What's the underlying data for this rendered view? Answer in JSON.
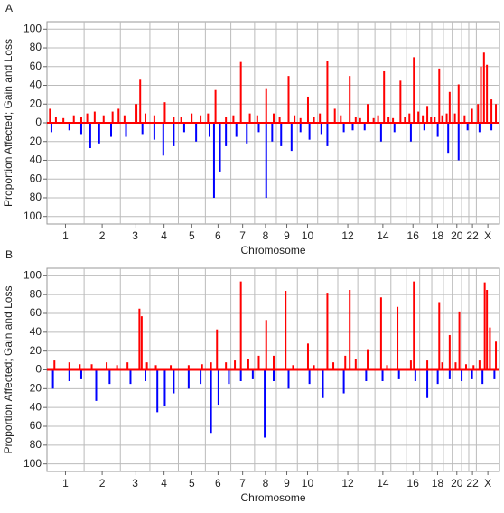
{
  "chart_data": [
    {
      "type": "bar",
      "panel_label": "A",
      "x_label": "Chromosome",
      "y_label": "Proportion Affected; Gain and Loss",
      "xlim": [
        0,
        3034
      ],
      "ylim": [
        -108,
        108
      ],
      "yticks": [
        {
          "value": -100,
          "label": "100"
        },
        {
          "value": -80,
          "label": "80"
        },
        {
          "value": -60,
          "label": "60"
        },
        {
          "value": -40,
          "label": "40"
        },
        {
          "value": -20,
          "label": "20"
        },
        0,
        20,
        40,
        60,
        80,
        100
      ],
      "xticks": [
        {
          "value": 124,
          "label": "1"
        },
        {
          "value": 370,
          "label": "2"
        },
        {
          "value": 591,
          "label": "3"
        },
        {
          "value": 785,
          "label": "4"
        },
        {
          "value": 971,
          "label": "5"
        },
        {
          "value": 1147,
          "label": "6"
        },
        {
          "value": 1312,
          "label": "7"
        },
        {
          "value": 1465,
          "label": "8"
        },
        {
          "value": 1608,
          "label": "9"
        },
        {
          "value": 1747,
          "label": "10"
        },
        {
          "value": 2017,
          "label": "12"
        },
        {
          "value": 2252,
          "label": "14"
        },
        {
          "value": 2454,
          "label": "16"
        },
        {
          "value": 2619,
          "label": "18"
        },
        {
          "value": 2748,
          "label": "20"
        },
        {
          "value": 2853,
          "label": "22"
        },
        {
          "value": 2956,
          "label": "X"
        }
      ],
      "xgrid": [
        249,
        492,
        690,
        881,
        1062,
        1233,
        1392,
        1538,
        1679,
        1815,
        1950,
        2084,
        2199,
        2306,
        2409,
        2499,
        2580,
        2658,
        2717,
        2780,
        2828,
        2879
      ],
      "grid": true,
      "series": [
        {
          "name": "Gain",
          "color": "#ff0000",
          "x": [
            20,
            60,
            110,
            180,
            230,
            270,
            320,
            380,
            440,
            480,
            520,
            600,
            625,
            660,
            720,
            790,
            850,
            900,
            970,
            1030,
            1080,
            1130,
            1200,
            1250,
            1300,
            1360,
            1410,
            1470,
            1520,
            1560,
            1620,
            1660,
            1700,
            1750,
            1790,
            1830,
            1880,
            1930,
            1970,
            2030,
            2070,
            2100,
            2150,
            2190,
            2220,
            2260,
            2290,
            2320,
            2370,
            2400,
            2430,
            2460,
            2490,
            2520,
            2550,
            2575,
            2600,
            2630,
            2650,
            2680,
            2700,
            2735,
            2760,
            2800,
            2850,
            2890,
            2910,
            2930,
            2950,
            2980,
            3010
          ],
          "values": [
            15,
            6,
            5,
            8,
            6,
            10,
            12,
            8,
            12,
            15,
            8,
            20,
            46,
            10,
            8,
            22,
            6,
            6,
            10,
            8,
            10,
            35,
            6,
            8,
            65,
            10,
            8,
            37,
            10,
            6,
            50,
            8,
            5,
            28,
            6,
            10,
            66,
            15,
            8,
            50,
            6,
            5,
            20,
            5,
            8,
            55,
            6,
            5,
            45,
            6,
            10,
            70,
            12,
            8,
            18,
            6,
            6,
            58,
            8,
            10,
            33,
            10,
            41,
            8,
            15,
            20,
            60,
            75,
            62,
            25,
            20
          ]
        },
        {
          "name": "Loss",
          "color": "#0000ff",
          "x": [
            30,
            150,
            230,
            290,
            350,
            430,
            530,
            640,
            720,
            780,
            850,
            920,
            1000,
            1090,
            1120,
            1160,
            1200,
            1270,
            1340,
            1420,
            1470,
            1510,
            1570,
            1640,
            1700,
            1760,
            1840,
            1880,
            1990,
            2050,
            2130,
            2240,
            2330,
            2440,
            2530,
            2620,
            2690,
            2760,
            2820,
            2900,
            2980
          ],
          "values": [
            -10,
            -8,
            -12,
            -27,
            -22,
            -15,
            -15,
            -12,
            -18,
            -35,
            -25,
            -10,
            -20,
            -15,
            -80,
            -52,
            -25,
            -15,
            -22,
            -10,
            -80,
            -20,
            -25,
            -30,
            -10,
            -18,
            -12,
            -25,
            -10,
            -8,
            -8,
            -20,
            -10,
            -20,
            -8,
            -15,
            -32,
            -40,
            -8,
            -10,
            -8
          ]
        }
      ]
    },
    {
      "type": "bar",
      "panel_label": "B",
      "x_label": "Chromosome",
      "y_label": "Proportion Affected; Gain and Loss",
      "xlim": [
        0,
        3034
      ],
      "ylim": [
        -108,
        108
      ],
      "yticks": [
        {
          "value": -100,
          "label": "100"
        },
        {
          "value": -80,
          "label": "80"
        },
        {
          "value": -60,
          "label": "60"
        },
        {
          "value": -40,
          "label": "40"
        },
        {
          "value": -20,
          "label": "20"
        },
        0,
        20,
        40,
        60,
        80,
        100
      ],
      "xticks": [
        {
          "value": 124,
          "label": "1"
        },
        {
          "value": 370,
          "label": "2"
        },
        {
          "value": 591,
          "label": "3"
        },
        {
          "value": 785,
          "label": "4"
        },
        {
          "value": 971,
          "label": "5"
        },
        {
          "value": 1147,
          "label": "6"
        },
        {
          "value": 1312,
          "label": "7"
        },
        {
          "value": 1465,
          "label": "8"
        },
        {
          "value": 1608,
          "label": "9"
        },
        {
          "value": 1747,
          "label": "10"
        },
        {
          "value": 2017,
          "label": "12"
        },
        {
          "value": 2252,
          "label": "14"
        },
        {
          "value": 2454,
          "label": "16"
        },
        {
          "value": 2619,
          "label": "18"
        },
        {
          "value": 2748,
          "label": "20"
        },
        {
          "value": 2853,
          "label": "22"
        },
        {
          "value": 2956,
          "label": "X"
        }
      ],
      "xgrid": [
        249,
        492,
        690,
        881,
        1062,
        1233,
        1392,
        1538,
        1679,
        1815,
        1950,
        2084,
        2199,
        2306,
        2409,
        2499,
        2580,
        2658,
        2717,
        2780,
        2828,
        2879
      ],
      "grid": true,
      "series": [
        {
          "name": "Gain",
          "color": "#ff0000",
          "x": [
            50,
            150,
            220,
            300,
            400,
            470,
            540,
            620,
            635,
            670,
            730,
            830,
            950,
            1040,
            1100,
            1140,
            1200,
            1260,
            1300,
            1350,
            1420,
            1470,
            1520,
            1600,
            1650,
            1750,
            1790,
            1880,
            1920,
            2000,
            2030,
            2070,
            2150,
            2240,
            2280,
            2350,
            2440,
            2460,
            2550,
            2630,
            2650,
            2700,
            2740,
            2765,
            2810,
            2860,
            2900,
            2935,
            2950,
            2970,
            3010
          ],
          "values": [
            10,
            8,
            6,
            6,
            8,
            5,
            8,
            65,
            57,
            8,
            5,
            5,
            5,
            6,
            8,
            43,
            8,
            10,
            94,
            12,
            15,
            53,
            15,
            84,
            5,
            28,
            5,
            82,
            8,
            15,
            85,
            12,
            22,
            77,
            5,
            67,
            10,
            94,
            10,
            72,
            8,
            37,
            8,
            62,
            6,
            5,
            10,
            93,
            85,
            45,
            30
          ]
        },
        {
          "name": "Loss",
          "color": "#0000ff",
          "x": [
            40,
            150,
            230,
            330,
            420,
            560,
            660,
            740,
            790,
            850,
            950,
            1030,
            1100,
            1150,
            1220,
            1300,
            1380,
            1460,
            1520,
            1620,
            1760,
            1850,
            1990,
            2140,
            2250,
            2360,
            2470,
            2550,
            2620,
            2700,
            2780,
            2850,
            2920,
            3000
          ],
          "values": [
            -20,
            -12,
            -10,
            -33,
            -15,
            -15,
            -12,
            -45,
            -38,
            -25,
            -20,
            -15,
            -67,
            -37,
            -15,
            -12,
            -10,
            -72,
            -12,
            -20,
            -15,
            -30,
            -25,
            -12,
            -12,
            -10,
            -12,
            -30,
            -15,
            -10,
            -12,
            -10,
            -15,
            -10
          ]
        }
      ]
    }
  ]
}
